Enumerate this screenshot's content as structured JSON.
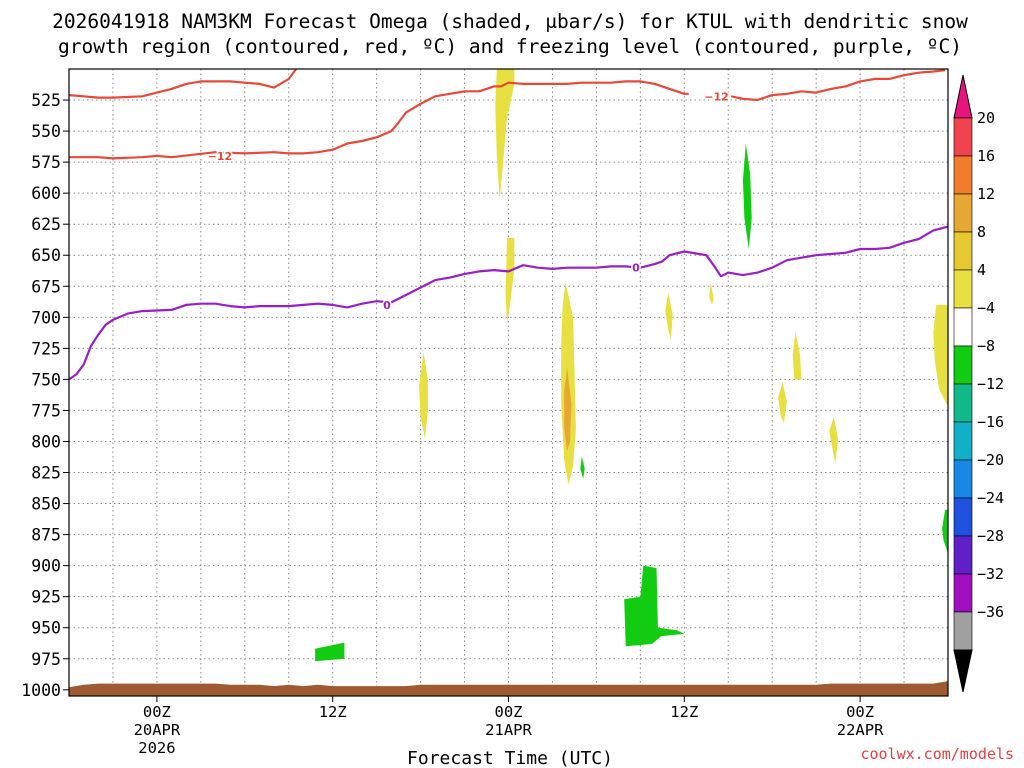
{
  "chart_data": {
    "type": "heatmap",
    "title": [
      "2026041918 NAM3KM Forecast Omega (shaded, μbar/s) for KTUL with dendritic snow",
      "growth region (contoured, red, ºC) and freezing level (contoured, purple, ºC)"
    ],
    "xlabel": "Forecast Time (UTC)",
    "credit": "coolwx.com/models",
    "x_axis": {
      "unit": "hours since 2026041918",
      "range": [
        0,
        60
      ],
      "ticks": [
        {
          "hour": 6,
          "label": [
            "00Z",
            "20APR",
            "2026"
          ]
        },
        {
          "hour": 18,
          "label": [
            "12Z"
          ]
        },
        {
          "hour": 30,
          "label": [
            "00Z",
            "21APR"
          ]
        },
        {
          "hour": 42,
          "label": [
            "12Z"
          ]
        },
        {
          "hour": 54,
          "label": [
            "00Z",
            "22APR"
          ]
        }
      ],
      "grid_every_hours": 3
    },
    "y_axis": {
      "unit": "hPa",
      "range": [
        500,
        1005
      ],
      "ticks": [
        525,
        550,
        575,
        600,
        625,
        650,
        675,
        700,
        725,
        750,
        775,
        800,
        825,
        850,
        875,
        900,
        925,
        950,
        975,
        1000
      ],
      "tick_labels": [
        "525",
        "550",
        "575",
        "600",
        "625",
        "650",
        "675",
        "700",
        "725",
        "750",
        "775",
        "800",
        "825",
        "850",
        "875",
        "900",
        "925",
        "950",
        "975",
        "1000"
      ],
      "grid": true
    },
    "colorbar": {
      "labels": [
        "20",
        "16",
        "12",
        "8",
        "4",
        "−4",
        "−8",
        "−12",
        "−16",
        "−20",
        "−24",
        "−28",
        "−32",
        "−36"
      ],
      "colors": [
        "#ef4450",
        "#f07c2c",
        "#e6a832",
        "#e6c830",
        "#e8e040",
        "#ffffff",
        "#12cc12",
        "#10b88a",
        "#10b0c8",
        "#1888e6",
        "#2050e0",
        "#6020c8",
        "#a010c0",
        "#a0a0a0"
      ],
      "top_arrow_color": "#e8147e",
      "bottom_arrow_color": "#000000"
    },
    "shaded_regions": [
      {
        "name": "yellow-plume-00z",
        "color": "#e8e040",
        "points": [
          [
            29.2,
            500
          ],
          [
            30.4,
            500
          ],
          [
            30.4,
            512
          ],
          [
            29.9,
            540
          ],
          [
            29.6,
            580
          ],
          [
            29.4,
            605
          ],
          [
            29.2,
            570
          ],
          [
            29.1,
            530
          ]
        ]
      },
      {
        "name": "yellow-column-03z",
        "color": "#e8e040",
        "points": [
          [
            33.9,
            672
          ],
          [
            34.4,
            700
          ],
          [
            34.5,
            740
          ],
          [
            34.6,
            790
          ],
          [
            34.4,
            820
          ],
          [
            34.1,
            835
          ],
          [
            33.8,
            815
          ],
          [
            33.6,
            770
          ],
          [
            33.6,
            720
          ],
          [
            33.7,
            690
          ]
        ]
      },
      {
        "name": "orange-core-03z",
        "color": "#e6a832",
        "points": [
          [
            34.0,
            740
          ],
          [
            34.3,
            770
          ],
          [
            34.2,
            800
          ],
          [
            34.0,
            808
          ],
          [
            33.8,
            790
          ],
          [
            33.8,
            760
          ]
        ]
      },
      {
        "name": "yellow-streak-00z",
        "color": "#e8e040",
        "points": [
          [
            29.9,
            636
          ],
          [
            30.4,
            636
          ],
          [
            30.4,
            660
          ],
          [
            30.1,
            690
          ],
          [
            29.9,
            705
          ],
          [
            29.8,
            680
          ]
        ]
      },
      {
        "name": "yellow-cell-18z",
        "color": "#e8e040",
        "points": [
          [
            24.2,
            728
          ],
          [
            24.5,
            750
          ],
          [
            24.5,
            775
          ],
          [
            24.3,
            798
          ],
          [
            24.0,
            780
          ],
          [
            23.9,
            755
          ]
        ]
      },
      {
        "name": "yellow-cell-10z",
        "color": "#e8e040",
        "points": [
          [
            40.9,
            680
          ],
          [
            41.2,
            698
          ],
          [
            41.1,
            718
          ],
          [
            40.9,
            710
          ],
          [
            40.7,
            695
          ]
        ]
      },
      {
        "name": "yellow-cell-16z",
        "color": "#e8e040",
        "points": [
          [
            43.8,
            672
          ],
          [
            44.0,
            685
          ],
          [
            43.9,
            690
          ],
          [
            43.7,
            684
          ]
        ]
      },
      {
        "name": "yellow-cell-19z-a",
        "color": "#e8e040",
        "points": [
          [
            49.6,
            712
          ],
          [
            49.9,
            730
          ],
          [
            50.0,
            750
          ],
          [
            49.5,
            750
          ],
          [
            49.4,
            730
          ]
        ]
      },
      {
        "name": "yellow-cell-19z-b",
        "color": "#e8e040",
        "points": [
          [
            48.7,
            752
          ],
          [
            49.0,
            768
          ],
          [
            48.8,
            785
          ],
          [
            48.6,
            780
          ],
          [
            48.4,
            765
          ]
        ]
      },
      {
        "name": "yellow-cell-22z",
        "color": "#e8e040",
        "points": [
          [
            52.2,
            780
          ],
          [
            52.5,
            798
          ],
          [
            52.3,
            818
          ],
          [
            52.1,
            805
          ],
          [
            51.9,
            792
          ]
        ]
      },
      {
        "name": "yellow-edge-06z",
        "color": "#e8e040",
        "points": [
          [
            59.2,
            690
          ],
          [
            60,
            690
          ],
          [
            60,
            772
          ],
          [
            59.4,
            758
          ],
          [
            59.1,
            735
          ],
          [
            59.0,
            712
          ]
        ]
      },
      {
        "name": "green-cell-16z",
        "color": "#12cc12",
        "points": [
          [
            46.2,
            560
          ],
          [
            46.5,
            585
          ],
          [
            46.6,
            620
          ],
          [
            46.4,
            645
          ],
          [
            46.1,
            620
          ],
          [
            46.0,
            590
          ]
        ]
      },
      {
        "name": "green-cell-04z",
        "color": "#12cc12",
        "points": [
          [
            35.0,
            812
          ],
          [
            35.2,
            822
          ],
          [
            35.1,
            830
          ],
          [
            34.9,
            822
          ]
        ]
      },
      {
        "name": "green-block-08z",
        "color": "#12cc12",
        "points": [
          [
            37.9,
            927
          ],
          [
            39.0,
            925
          ],
          [
            39.2,
            900
          ],
          [
            40.1,
            902
          ],
          [
            40.2,
            950
          ],
          [
            41.5,
            952
          ],
          [
            42.0,
            955
          ],
          [
            41.0,
            956
          ],
          [
            40.4,
            957
          ],
          [
            39.8,
            963
          ],
          [
            38.0,
            965
          ]
        ]
      },
      {
        "name": "green-block-13z",
        "color": "#12cc12",
        "points": [
          [
            16.8,
            967
          ],
          [
            18.8,
            962
          ],
          [
            18.8,
            975
          ],
          [
            16.8,
            977
          ]
        ]
      },
      {
        "name": "green-edge-07z",
        "color": "#12cc12",
        "points": [
          [
            59.8,
            855
          ],
          [
            60,
            855
          ],
          [
            60,
            890
          ],
          [
            59.7,
            880
          ],
          [
            59.6,
            870
          ]
        ]
      }
    ],
    "series": [
      {
        "name": "−12",
        "color": "#e84838",
        "labels": [
          {
            "x": 10.3,
            "y": 570,
            "text": "−12"
          },
          {
            "x": 44.2,
            "y": 522,
            "text": "−12"
          }
        ],
        "x": [
          0,
          2,
          3,
          5,
          6,
          7,
          10,
          12,
          14,
          15,
          16,
          17,
          18,
          19,
          20,
          21,
          22,
          22.5,
          23,
          24,
          24.5,
          25,
          26,
          27,
          28,
          29,
          29.5,
          30,
          31,
          32,
          33,
          34,
          35,
          36,
          37,
          38,
          39,
          40,
          41,
          42,
          42.3
        ],
        "y": [
          571,
          571,
          572,
          571,
          570,
          571,
          567,
          568,
          567,
          568,
          568,
          567,
          565,
          560,
          558,
          555,
          550,
          543,
          535,
          528,
          525,
          522,
          520,
          518,
          518,
          514,
          514,
          511,
          512,
          512,
          512,
          512,
          511,
          511,
          511,
          510,
          510,
          512,
          516,
          520,
          520
        ]
      },
      {
        "name": "−12-upper",
        "color": "#e84838",
        "x": [
          0,
          1,
          2,
          3,
          5,
          6,
          7,
          8,
          9,
          10,
          11,
          12,
          13,
          14,
          15,
          15.5
        ],
        "y": [
          521,
          522,
          523,
          523,
          522,
          519,
          516,
          512,
          510,
          510,
          510,
          511,
          512,
          515,
          508,
          500
        ]
      },
      {
        "name": "−12-right",
        "color": "#e84838",
        "x": [
          45.2,
          46,
          47,
          48,
          49,
          50,
          51,
          52,
          53,
          54,
          55,
          56,
          57,
          58,
          59,
          59.8
        ],
        "y": [
          522,
          524,
          525,
          521,
          520,
          518,
          519,
          516,
          514,
          510,
          508,
          508,
          505,
          503,
          502,
          501
        ]
      },
      {
        "name": "0",
        "color": "#9a1ec8",
        "labels": [
          {
            "x": 21.7,
            "y": 690,
            "text": "0"
          },
          {
            "x": 38.7,
            "y": 660,
            "text": "0"
          }
        ],
        "x": [
          0,
          0.5,
          1,
          1.5,
          2,
          2.5,
          3,
          4,
          5,
          7,
          8,
          9,
          10,
          11,
          12,
          13,
          14,
          15,
          16,
          17,
          18,
          19,
          20,
          21,
          22,
          23,
          24,
          25,
          26,
          27,
          28,
          29,
          30,
          31,
          32,
          33,
          34,
          35,
          36,
          37,
          38,
          39,
          40,
          40.5,
          41,
          42,
          43,
          43.5,
          44,
          44.5,
          45,
          46,
          47,
          48,
          49,
          50,
          51,
          52,
          53,
          54,
          55,
          56,
          57,
          58,
          59,
          60
        ],
        "y": [
          750,
          746,
          738,
          723,
          714,
          706,
          702,
          697,
          695,
          694,
          690,
          689,
          689,
          691,
          692,
          691,
          691,
          691,
          690,
          689,
          690,
          692,
          689,
          687,
          688,
          682,
          676,
          670,
          668,
          665,
          663,
          662,
          663,
          658,
          660,
          661,
          660,
          660,
          660,
          659,
          659,
          660,
          657,
          655,
          650,
          647,
          649,
          650,
          658,
          667,
          664,
          666,
          664,
          660,
          654,
          652,
          650,
          649,
          648,
          645,
          645,
          644,
          640,
          637,
          630,
          627
        ]
      }
    ],
    "terrain": {
      "name": "surface",
      "color": "#a05a32",
      "x": [
        0,
        1,
        2,
        3,
        4,
        5,
        6,
        7,
        8,
        9,
        10,
        11,
        12,
        13,
        14,
        15,
        16,
        17,
        18,
        19,
        20,
        21,
        22,
        23,
        24,
        25,
        26,
        27,
        28,
        29,
        30,
        31,
        32,
        33,
        34,
        35,
        36,
        37,
        38,
        39,
        40,
        41,
        42,
        43,
        44,
        45,
        46,
        47,
        48,
        49,
        50,
        51,
        52,
        53,
        54,
        55,
        56,
        57,
        58,
        59,
        60
      ],
      "y": [
        998,
        996,
        995,
        995,
        995,
        995,
        995,
        995,
        995,
        995,
        995,
        996,
        996,
        996,
        997,
        996,
        997,
        996,
        997,
        997,
        997,
        997,
        997,
        997,
        996,
        996,
        996,
        996,
        996,
        996,
        996,
        996,
        996,
        996,
        996,
        996,
        996,
        996,
        996,
        996,
        996,
        996,
        996,
        996,
        996,
        996,
        996,
        996,
        996,
        996,
        996,
        996,
        995,
        995,
        995,
        995,
        995,
        995,
        995,
        995,
        993
      ]
    }
  }
}
